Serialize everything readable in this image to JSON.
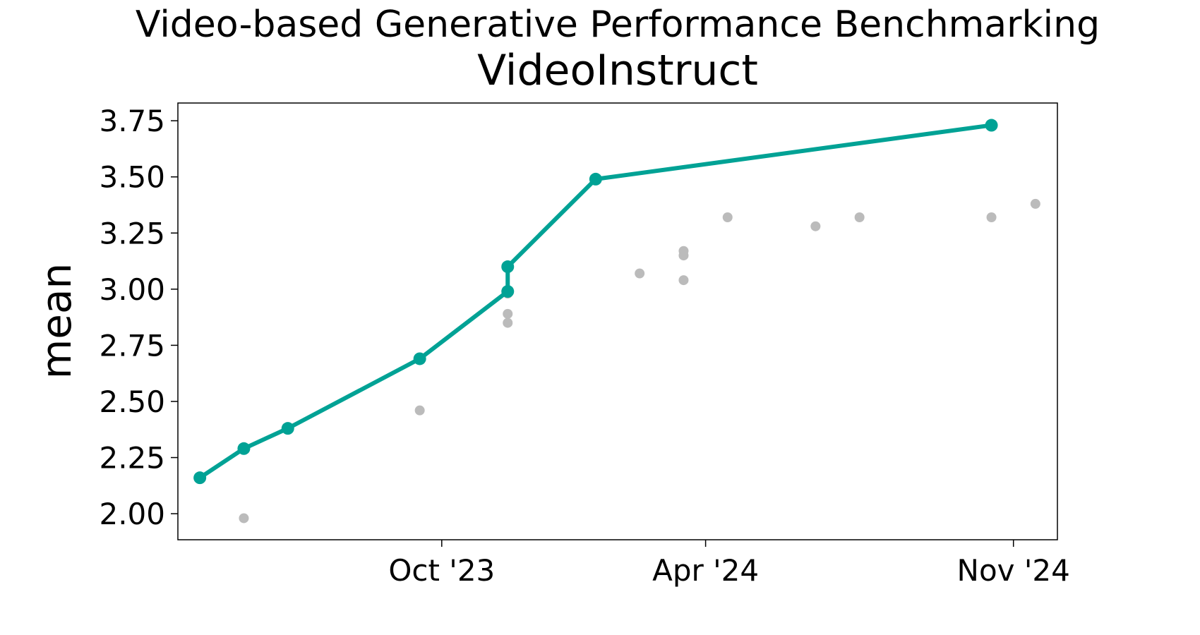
{
  "chart_data": {
    "type": "line",
    "title": "Video-based Generative Performance Benchmarking",
    "subtitle": "VideoInstruct",
    "y_label": "mean",
    "xlim": [
      "2023-04",
      "2024-12"
    ],
    "xticks": [
      {
        "value": "2023-10",
        "label": "Oct '23"
      },
      {
        "value": "2024-04",
        "label": "Apr '24"
      },
      {
        "value": "2024-11",
        "label": "Nov '24"
      }
    ],
    "ylim": [
      1.884,
      3.829
    ],
    "yticks": [
      {
        "value": 2,
        "label": "2.00"
      },
      2.25,
      {
        "value": 2.5,
        "label": "2.50"
      },
      2.75,
      {
        "value": 3,
        "label": "3.00"
      },
      3.25,
      {
        "value": 3.5,
        "label": "3.50"
      },
      3.75
    ],
    "series": [
      {
        "type": "scatter",
        "color": "#bbbbbb",
        "x": [
          "2023-05",
          "2023-09",
          "2023-11",
          "2023-11",
          "2023-11",
          "2023-11",
          "2024-02",
          "2024-03",
          "2024-03",
          "2024-03",
          "2024-04",
          "2024-06",
          "2024-07",
          "2024-10",
          "2024-11"
        ],
        "values": [
          1.98,
          2.46,
          2.99,
          2.98,
          2.89,
          2.85,
          3.07,
          3.17,
          3.04,
          3.15,
          3.32,
          3.28,
          3.32,
          3.32,
          3.38
        ]
      },
      {
        "type": "line",
        "color": "#00a295",
        "x": [
          "2023-04",
          "2023-05",
          "2023-06",
          "2023-09",
          "2023-11",
          "2023-11",
          "2024-01",
          "2024-10"
        ],
        "values": [
          2.16,
          2.29,
          2.38,
          2.69,
          2.99,
          3.1,
          3.49,
          3.73
        ]
      }
    ]
  }
}
